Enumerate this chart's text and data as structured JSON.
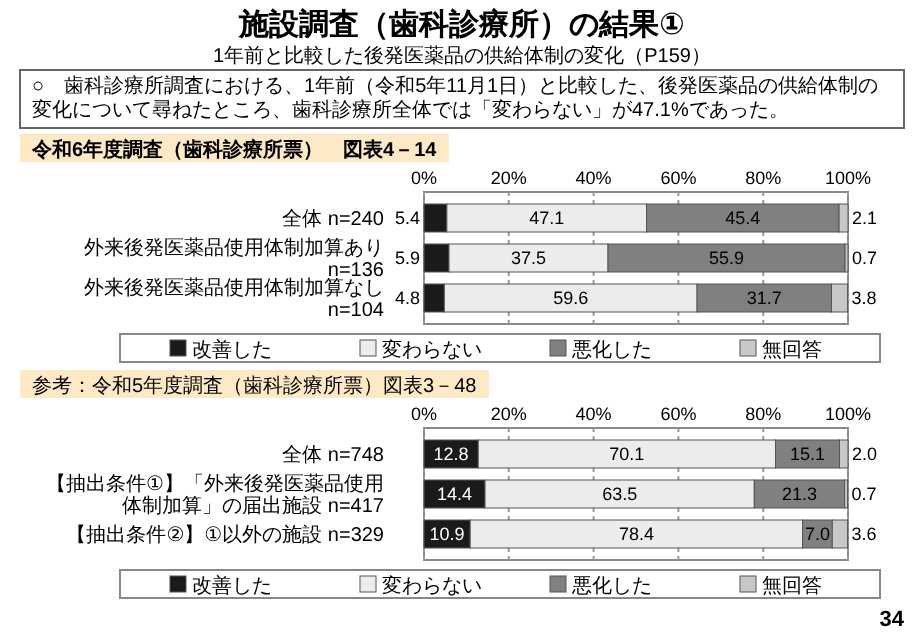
{
  "chart_data": [
    {
      "type": "other",
      "title": "施設調査（歯科診療所）の結果①",
      "subtitle": "1年前と比較した後発医薬品の供給体制の変化（P159）",
      "annotations": [
        "○　歯科診療所調査における、1年前（令和5年11月1日）と比較した、後発医薬品の供給体制の変化について尋ねたところ、歯科診療所全体では「変わらない」が47.1%であった。",
        "34"
      ]
    },
    {
      "type": "bar",
      "orientation": "horizontal",
      "stacked": true,
      "title": "令和6年度調査（歯科診療所票）　図表4－14",
      "categories": [
        "全体 n=240",
        "外来後発医薬品使用体制加算あり n=136",
        "外来後発医薬品使用体制加算なし n=104"
      ],
      "series": [
        {
          "name": "改善した",
          "color": "#1a1a1a",
          "values": [
            5.4,
            5.9,
            4.8
          ],
          "value_labels": [
            "5.4",
            "5.9",
            "4.8"
          ]
        },
        {
          "name": "変わらない",
          "color": "#ececec",
          "values": [
            47.1,
            37.5,
            59.6
          ],
          "value_labels": [
            "47.1",
            "37.5",
            "59.6"
          ]
        },
        {
          "name": "悪化した",
          "color": "#808080",
          "values": [
            45.4,
            55.9,
            31.7
          ],
          "value_labels": [
            "45.4",
            "55.9",
            "31.7"
          ]
        },
        {
          "name": "無回答",
          "color": "#c8c8c8",
          "values": [
            2.1,
            0.7,
            3.8
          ],
          "value_labels": [
            "2.1",
            "0.7",
            "3.8"
          ]
        }
      ],
      "xlim": [
        0,
        100
      ],
      "xticks": [
        {
          "value": 0,
          "label": "0%"
        },
        {
          "value": 20,
          "label": "20%"
        },
        {
          "value": 40,
          "label": "40%"
        },
        {
          "value": 60,
          "label": "60%"
        },
        {
          "value": 80,
          "label": "80%"
        },
        {
          "value": 100,
          "label": "100%"
        }
      ],
      "grid": "x",
      "legend": "bottom"
    },
    {
      "type": "bar",
      "orientation": "horizontal",
      "stacked": true,
      "title": "参考：令和5年度調査（歯科診療所票）図表3－48",
      "categories": [
        "全体 n=748",
        "【抽出条件①】「外来後発医薬品使用体制加算」の届出施設 n=417",
        "【抽出条件②】①以外の施設 n=329"
      ],
      "series": [
        {
          "name": "改善した",
          "color": "#1a1a1a",
          "values": [
            12.8,
            14.4,
            10.9
          ],
          "value_labels": [
            "12.8",
            "14.4",
            "10.9"
          ]
        },
        {
          "name": "変わらない",
          "color": "#ececec",
          "values": [
            70.1,
            63.5,
            78.4
          ],
          "value_labels": [
            "70.1",
            "63.5",
            "78.4"
          ]
        },
        {
          "name": "悪化した",
          "color": "#808080",
          "values": [
            15.1,
            21.3,
            7.0
          ],
          "value_labels": [
            "15.1",
            "21.3",
            "7.0"
          ]
        },
        {
          "name": "無回答",
          "color": "#c8c8c8",
          "values": [
            2.0,
            0.7,
            3.6
          ],
          "value_labels": [
            "2.0",
            "0.7",
            "3.6"
          ]
        }
      ],
      "xlim": [
        0,
        100
      ],
      "xticks": [
        {
          "value": 0,
          "label": "0%"
        },
        {
          "value": 20,
          "label": "20%"
        },
        {
          "value": 40,
          "label": "40%"
        },
        {
          "value": 60,
          "label": "60%"
        },
        {
          "value": 80,
          "label": "80%"
        },
        {
          "value": 100,
          "label": "100%"
        }
      ],
      "grid": "x",
      "legend": "bottom"
    }
  ]
}
